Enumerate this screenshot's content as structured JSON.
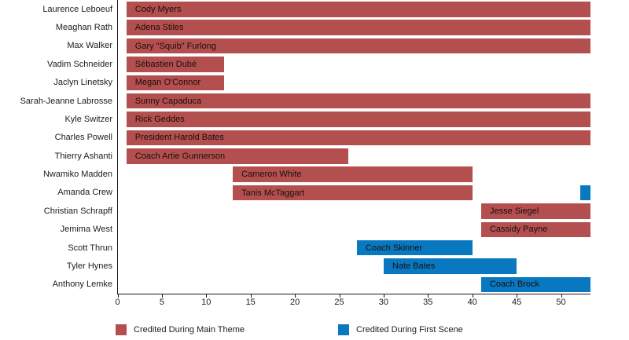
{
  "chart_data": {
    "type": "bar",
    "orientation": "horizontal",
    "title": "",
    "xlabel": "",
    "ylabel": "",
    "grid": false,
    "legend_position": "bottom",
    "xlim": [
      0,
      53.3
    ],
    "x_ticks": [
      0,
      5,
      10,
      15,
      20,
      25,
      30,
      35,
      40,
      45,
      50
    ],
    "series_colors": {
      "main_theme": "#b3504f",
      "first_scene": "#0879c1"
    },
    "rows": [
      {
        "actor": "Laurence Leboeuf",
        "character": "Cody Myers",
        "bars": [
          {
            "series": "main_theme",
            "start": 1,
            "end": 53.3,
            "label": "Cody Myers"
          }
        ]
      },
      {
        "actor": "Meaghan Rath",
        "character": "Adena Stiles",
        "bars": [
          {
            "series": "main_theme",
            "start": 1,
            "end": 53.3,
            "label": "Adena Stiles"
          }
        ]
      },
      {
        "actor": "Max Walker",
        "character": "Gary \"Squib\" Furlong",
        "bars": [
          {
            "series": "main_theme",
            "start": 1,
            "end": 53.3,
            "label": "Gary \"Squib\" Furlong"
          }
        ]
      },
      {
        "actor": "Vadim Schneider",
        "character": "Sébastien Dubé",
        "bars": [
          {
            "series": "main_theme",
            "start": 1,
            "end": 12,
            "label": "Sébastien Dubé"
          }
        ]
      },
      {
        "actor": "Jaclyn Linetsky",
        "character": "Megan O'Connor",
        "bars": [
          {
            "series": "main_theme",
            "start": 1,
            "end": 12,
            "label": "Megan O'Connor"
          }
        ]
      },
      {
        "actor": "Sarah-Jeanne Labrosse",
        "character": "Sunny Capaduca",
        "bars": [
          {
            "series": "main_theme",
            "start": 1,
            "end": 53.3,
            "label": "Sunny Capaduca"
          }
        ]
      },
      {
        "actor": "Kyle Switzer",
        "character": "Rick Geddes",
        "bars": [
          {
            "series": "main_theme",
            "start": 1,
            "end": 53.3,
            "label": "Rick Geddes"
          }
        ]
      },
      {
        "actor": "Charles Powell",
        "character": "President Harold Bates",
        "bars": [
          {
            "series": "main_theme",
            "start": 1,
            "end": 53.3,
            "label": "President Harold Bates"
          }
        ]
      },
      {
        "actor": "Thierry Ashanti",
        "character": "Coach Artie Gunnerson",
        "bars": [
          {
            "series": "main_theme",
            "start": 1,
            "end": 26,
            "label": "Coach Artie Gunnerson"
          }
        ]
      },
      {
        "actor": "Nwamiko Madden",
        "character": "Cameron White",
        "bars": [
          {
            "series": "main_theme",
            "start": 13,
            "end": 40,
            "label": "Cameron White"
          }
        ]
      },
      {
        "actor": "Amanda Crew",
        "character": "Tanis McTaggart",
        "bars": [
          {
            "series": "main_theme",
            "start": 13,
            "end": 40,
            "label": "Tanis McTaggart"
          },
          {
            "series": "first_scene",
            "start": 52.2,
            "end": 53.3,
            "label": ""
          }
        ]
      },
      {
        "actor": "Christian Schrapff",
        "character": "Jesse Siegel",
        "bars": [
          {
            "series": "main_theme",
            "start": 41,
            "end": 53.3,
            "label": "Jesse Siegel"
          }
        ]
      },
      {
        "actor": "Jemima West",
        "character": "Cassidy Payne",
        "bars": [
          {
            "series": "main_theme",
            "start": 41,
            "end": 53.3,
            "label": "Cassidy Payne"
          }
        ]
      },
      {
        "actor": "Scott Thrun",
        "character": "Coach Skinner",
        "bars": [
          {
            "series": "first_scene",
            "start": 27,
            "end": 40,
            "label": "Coach Skinner"
          }
        ]
      },
      {
        "actor": "Tyler Hynes",
        "character": "Nate Bates",
        "bars": [
          {
            "series": "first_scene",
            "start": 30,
            "end": 45,
            "label": "Nate Bates"
          }
        ]
      },
      {
        "actor": "Anthony Lemke",
        "character": "Coach Brock",
        "bars": [
          {
            "series": "first_scene",
            "start": 41,
            "end": 53.3,
            "label": "Coach Brock"
          }
        ]
      }
    ],
    "legend": [
      {
        "series": "main_theme",
        "label": "Credited During Main Theme",
        "color": "#b3504f"
      },
      {
        "series": "first_scene",
        "label": "Credited During First Scene",
        "color": "#0879c1"
      }
    ]
  },
  "colors": {
    "background": "#ffffff",
    "axis": "#1a1a1a",
    "tick_text": "#1c1c1c",
    "bar_label_text": "#1a0d0d"
  }
}
